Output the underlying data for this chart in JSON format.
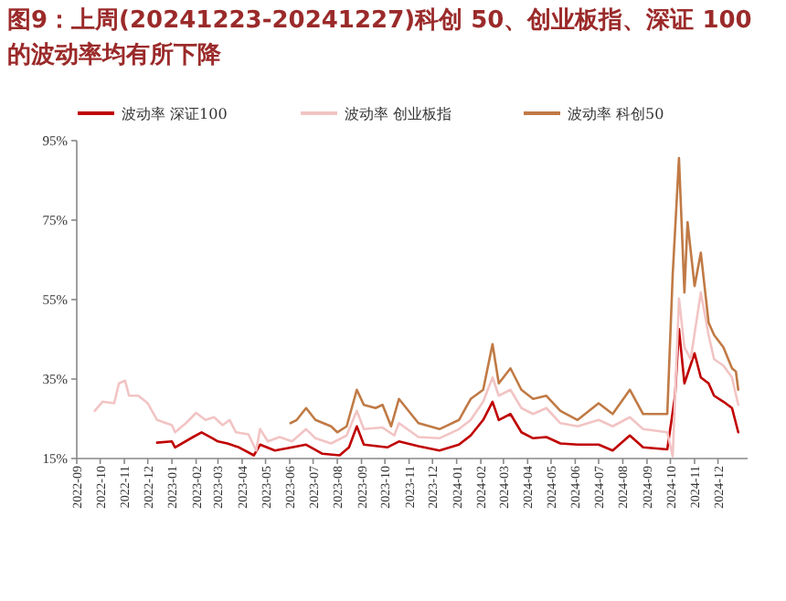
{
  "chart_data": {
    "type": "line",
    "title": "图9：上周(20241223-20241227)科创 50、创业板指、深证 100 的波动率均有所下降",
    "series": [
      {
        "name": "波动率 深证100",
        "color": "#c00000",
        "x": [
          "2022-12-13",
          "2023-01-01",
          "2023-01-05",
          "2023-01-28",
          "2023-02-08",
          "2023-02-22",
          "2023-03-01",
          "2023-03-13",
          "2023-03-28",
          "2023-04-16",
          "2023-04-24",
          "2023-05-13",
          "2023-06-04",
          "2023-06-22",
          "2023-07-13",
          "2023-08-04",
          "2023-08-16",
          "2023-08-26",
          "2023-09-04",
          "2023-10-04",
          "2023-10-19",
          "2023-11-13",
          "2023-12-10",
          "2024-01-04",
          "2024-01-19",
          "2024-02-04",
          "2024-02-16",
          "2024-02-24",
          "2024-03-10",
          "2024-03-24",
          "2024-04-08",
          "2024-04-25",
          "2024-05-13",
          "2024-06-04",
          "2024-07-01",
          "2024-07-19",
          "2024-08-10",
          "2024-08-27",
          "2024-09-27",
          "2024-10-07",
          "2024-10-12",
          "2024-10-19",
          "2024-11-01",
          "2024-11-09",
          "2024-11-19",
          "2024-11-26",
          "2024-12-08",
          "2024-12-19",
          "2024-12-27"
        ],
        "values": [
          19.0,
          19.3,
          17.8,
          20.4,
          21.6,
          20.1,
          19.3,
          18.8,
          17.8,
          15.8,
          18.5,
          17.0,
          17.8,
          18.5,
          16.2,
          15.8,
          17.8,
          23.1,
          18.5,
          17.8,
          19.3,
          18.1,
          17.0,
          18.5,
          20.8,
          24.7,
          29.3,
          24.7,
          26.2,
          21.6,
          20.1,
          20.4,
          18.8,
          18.5,
          18.5,
          17.0,
          20.8,
          17.8,
          17.3,
          30.8,
          47.6,
          33.9,
          41.5,
          35.4,
          33.9,
          30.8,
          29.3,
          27.7,
          21.6
        ]
      },
      {
        "name": "波动率 创业板指",
        "color": "#f2c4c4",
        "x": [
          "2022-09-24",
          "2022-10-04",
          "2022-10-19",
          "2022-10-25",
          "2022-11-02",
          "2022-11-07",
          "2022-11-19",
          "2022-12-01",
          "2022-12-13",
          "2023-01-01",
          "2023-01-05",
          "2023-01-19",
          "2023-02-01",
          "2023-02-13",
          "2023-02-24",
          "2023-03-07",
          "2023-03-16",
          "2023-03-24",
          "2023-04-09",
          "2023-04-19",
          "2023-04-24",
          "2023-05-04",
          "2023-05-19",
          "2023-06-04",
          "2023-06-22",
          "2023-07-04",
          "2023-07-24",
          "2023-08-13",
          "2023-08-26",
          "2023-09-04",
          "2023-09-28",
          "2023-10-13",
          "2023-10-19",
          "2023-11-13",
          "2023-12-10",
          "2024-01-04",
          "2024-01-19",
          "2024-02-04",
          "2024-02-16",
          "2024-02-24",
          "2024-03-10",
          "2024-03-24",
          "2024-04-08",
          "2024-04-25",
          "2024-05-13",
          "2024-06-04",
          "2024-07-01",
          "2024-07-19",
          "2024-08-10",
          "2024-08-27",
          "2024-09-27",
          "2024-10-04",
          "2024-10-12",
          "2024-10-19",
          "2024-10-27",
          "2024-11-09",
          "2024-11-19",
          "2024-11-26",
          "2024-12-08",
          "2024-12-19",
          "2024-12-27"
        ],
        "values": [
          27.0,
          29.3,
          28.9,
          33.9,
          34.6,
          30.8,
          30.8,
          28.9,
          24.7,
          23.4,
          21.6,
          23.9,
          26.5,
          24.7,
          25.4,
          23.4,
          24.7,
          21.6,
          21.1,
          17.0,
          22.4,
          19.3,
          20.4,
          19.3,
          22.4,
          20.1,
          18.8,
          20.8,
          27.0,
          22.4,
          22.8,
          20.8,
          23.9,
          20.4,
          20.1,
          22.4,
          24.7,
          29.3,
          35.4,
          30.8,
          32.3,
          27.7,
          26.2,
          27.7,
          23.9,
          23.1,
          24.7,
          23.1,
          25.4,
          22.4,
          21.6,
          15.5,
          55.3,
          43.0,
          40.0,
          56.8,
          46.1,
          40.0,
          38.4,
          35.4,
          28.5
        ]
      },
      {
        "name": "波动率 科创50",
        "color": "#c07a45",
        "x": [
          "2023-06-02",
          "2023-06-10",
          "2023-06-22",
          "2023-07-04",
          "2023-07-24",
          "2023-08-01",
          "2023-08-13",
          "2023-08-26",
          "2023-09-04",
          "2023-09-19",
          "2023-09-28",
          "2023-10-09",
          "2023-10-19",
          "2023-11-13",
          "2023-12-10",
          "2024-01-04",
          "2024-01-19",
          "2024-02-04",
          "2024-02-16",
          "2024-02-24",
          "2024-03-10",
          "2024-03-24",
          "2024-04-08",
          "2024-04-25",
          "2024-05-13",
          "2024-06-04",
          "2024-07-01",
          "2024-07-19",
          "2024-08-10",
          "2024-08-27",
          "2024-09-27",
          "2024-10-04",
          "2024-10-12",
          "2024-10-19",
          "2024-10-23",
          "2024-11-01",
          "2024-11-09",
          "2024-11-19",
          "2024-11-26",
          "2024-12-08",
          "2024-12-19",
          "2024-12-24",
          "2024-12-27"
        ],
        "values": [
          23.9,
          24.7,
          27.7,
          24.7,
          23.1,
          21.6,
          23.1,
          32.3,
          28.5,
          27.7,
          28.5,
          23.1,
          30.0,
          23.9,
          22.4,
          24.7,
          30.0,
          32.3,
          43.8,
          33.9,
          37.7,
          32.3,
          30.0,
          30.8,
          27.0,
          24.7,
          28.9,
          26.2,
          32.3,
          26.2,
          26.2,
          61.4,
          90.6,
          56.8,
          74.5,
          58.4,
          66.8,
          49.2,
          46.1,
          43.0,
          37.7,
          36.9,
          32.3
        ]
      }
    ],
    "xlim": [
      "2022-09-01",
      "2025-01-08"
    ],
    "xticks": [
      "2022-09",
      "2022-10",
      "2022-11",
      "2022-12",
      "2023-01",
      "2023-02",
      "2023-03",
      "2023-04",
      "2023-05",
      "2023-06",
      "2023-07",
      "2023-08",
      "2023-09",
      "2023-10",
      "2023-11",
      "2023-12",
      "2024-01",
      "2024-02",
      "2024-03",
      "2024-04",
      "2024-05",
      "2024-06",
      "2024-07",
      "2024-08",
      "2024-09",
      "2024-10",
      "2024-11",
      "2024-12"
    ],
    "ylim": [
      15,
      95
    ],
    "yticks": [
      {
        "value": 15,
        "label": "15%"
      },
      {
        "value": 35,
        "label": "35%"
      },
      {
        "value": 55,
        "label": "55%"
      },
      {
        "value": 75,
        "label": "75%"
      },
      {
        "value": 95,
        "label": "95%"
      }
    ],
    "grid": false,
    "legend": "top",
    "marker": "none",
    "line_style": "solid"
  }
}
